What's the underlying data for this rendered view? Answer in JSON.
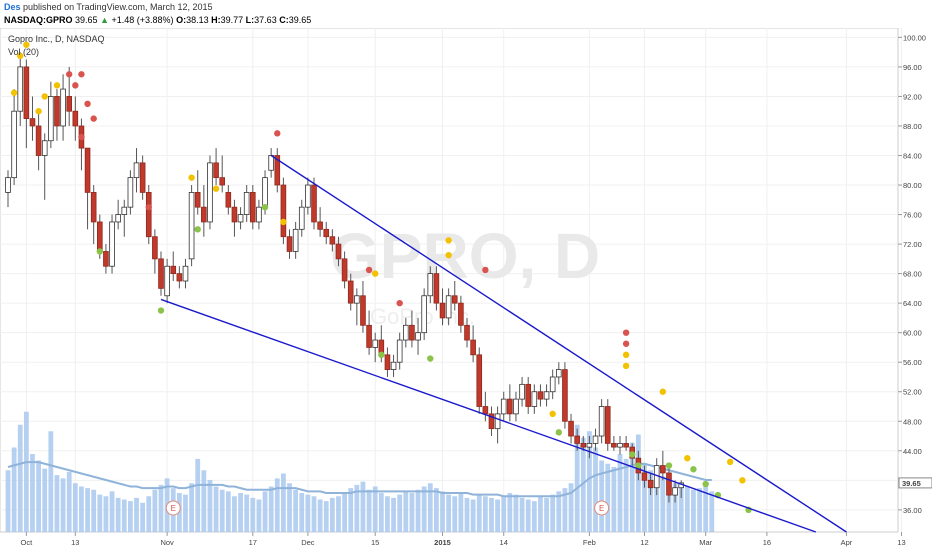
{
  "header": {
    "author": "Des",
    "published": "published on TradingView.com, March 12, 2015",
    "symbol": "NASDAQ:GPRO",
    "last": "39.65",
    "change": "+1.48 (+3.88%)",
    "open_label": "O:",
    "open": "38.13",
    "high_label": "H:",
    "high": "39.77",
    "low_label": "L:",
    "low": "37.63",
    "close_label": "C:",
    "close": "39.65"
  },
  "chart_data": {
    "type": "candlestick",
    "title": "Gopro Inc., D, NASDAQ",
    "volume_label": "Vol (20)",
    "watermark": "GPRO, D",
    "watermark_sub": "GoPro Inc.",
    "y_ticks": [
      "100.00",
      "96.00",
      "92.00",
      "88.00",
      "84.00",
      "80.00",
      "76.00",
      "72.00",
      "68.00",
      "64.00",
      "60.00",
      "56.00",
      "52.00",
      "48.00",
      "44.00",
      "40.00",
      "36.00"
    ],
    "ylim": [
      33,
      101
    ],
    "last_price_label": "39.65",
    "x_ticks": [
      {
        "label": "Oct",
        "i": 3
      },
      {
        "label": "13",
        "i": 11
      },
      {
        "label": "Nov",
        "i": 26
      },
      {
        "label": "17",
        "i": 40
      },
      {
        "label": "Dec",
        "i": 49
      },
      {
        "label": "15",
        "i": 60
      },
      {
        "label": "2015",
        "i": 71
      },
      {
        "label": "14",
        "i": 81
      },
      {
        "label": "Feb",
        "i": 95
      },
      {
        "label": "12",
        "i": 104
      },
      {
        "label": "Mar",
        "i": 114
      },
      {
        "label": "16",
        "i": 124
      },
      {
        "label": "Apr",
        "i": 137
      },
      {
        "label": "13",
        "i": 146
      }
    ],
    "earnings_markers": [
      {
        "label": "E",
        "i": 27
      },
      {
        "label": "E",
        "i": 97
      }
    ],
    "candles": [
      [
        79,
        82,
        77,
        81
      ],
      [
        81,
        93,
        80,
        90
      ],
      [
        90,
        98,
        88,
        96
      ],
      [
        96,
        97,
        85,
        89
      ],
      [
        89,
        92,
        86,
        88
      ],
      [
        88,
        90,
        82,
        84
      ],
      [
        84,
        87,
        78,
        86
      ],
      [
        86,
        94,
        85,
        92
      ],
      [
        92,
        93,
        86,
        88
      ],
      [
        88,
        95,
        86,
        93
      ],
      [
        92,
        96,
        88,
        90
      ],
      [
        90,
        92,
        86,
        88
      ],
      [
        88,
        89,
        82,
        85
      ],
      [
        85,
        85,
        74,
        79
      ],
      [
        79,
        80,
        72,
        75
      ],
      [
        75,
        76,
        70,
        71
      ],
      [
        71,
        72,
        68,
        69
      ],
      [
        69,
        76,
        68,
        75
      ],
      [
        75,
        78,
        74,
        76
      ],
      [
        76,
        78,
        73,
        77
      ],
      [
        77,
        82,
        76,
        81
      ],
      [
        81,
        85,
        79,
        83
      ],
      [
        83,
        84,
        78,
        79
      ],
      [
        79,
        80,
        72,
        73
      ],
      [
        73,
        74,
        68,
        70
      ],
      [
        70,
        71,
        65,
        66
      ],
      [
        65,
        70,
        64,
        69
      ],
      [
        69,
        71,
        67,
        68
      ],
      [
        68,
        69,
        66,
        67
      ],
      [
        67,
        70,
        66,
        69
      ],
      [
        70,
        80,
        69,
        79
      ],
      [
        79,
        82,
        76,
        77
      ],
      [
        77,
        80,
        73,
        75
      ],
      [
        75,
        84,
        74,
        83
      ],
      [
        83,
        85,
        80,
        81
      ],
      [
        81,
        84,
        79,
        80
      ],
      [
        79,
        80,
        76,
        77
      ],
      [
        77,
        78,
        73,
        75
      ],
      [
        75,
        77,
        74,
        76
      ],
      [
        76,
        80,
        75,
        79
      ],
      [
        79,
        80,
        74,
        75
      ],
      [
        75,
        78,
        74,
        77
      ],
      [
        77,
        82,
        76,
        81
      ],
      [
        82,
        85,
        81,
        84
      ],
      [
        84,
        85,
        79,
        80
      ],
      [
        80,
        81,
        72,
        73
      ],
      [
        73,
        74,
        70,
        71
      ],
      [
        71,
        75,
        70,
        74
      ],
      [
        74,
        78,
        73,
        77
      ],
      [
        77,
        81,
        76,
        80
      ],
      [
        80,
        81,
        74,
        75
      ],
      [
        75,
        77,
        73,
        74
      ],
      [
        74,
        75,
        72,
        73
      ],
      [
        73,
        74,
        71,
        72
      ],
      [
        72,
        73,
        69,
        70
      ],
      [
        70,
        71,
        66,
        67
      ],
      [
        67,
        68,
        63,
        64
      ],
      [
        64,
        66,
        61,
        65
      ],
      [
        65,
        67,
        60,
        61
      ],
      [
        61,
        63,
        57,
        58
      ],
      [
        58,
        60,
        56,
        59
      ],
      [
        59,
        61,
        56,
        57
      ],
      [
        57,
        58,
        54,
        55
      ],
      [
        55,
        57,
        54,
        56
      ],
      [
        56,
        60,
        55,
        59
      ],
      [
        59,
        62,
        58,
        61
      ],
      [
        61,
        63,
        58,
        59
      ],
      [
        59,
        62,
        57,
        60
      ],
      [
        60,
        66,
        59,
        65
      ],
      [
        65,
        69,
        64,
        68
      ],
      [
        68,
        69,
        63,
        64
      ],
      [
        64,
        66,
        61,
        62
      ],
      [
        62,
        66,
        61,
        65
      ],
      [
        65,
        67,
        63,
        64
      ],
      [
        64,
        65,
        60,
        61
      ],
      [
        61,
        62,
        58,
        59
      ],
      [
        59,
        61,
        56,
        57
      ],
      [
        57,
        58,
        49,
        50
      ],
      [
        50,
        52,
        48,
        49
      ],
      [
        49,
        50,
        46,
        47
      ],
      [
        47,
        50,
        45,
        49
      ],
      [
        49,
        52,
        48,
        51
      ],
      [
        51,
        53,
        48,
        49
      ],
      [
        49,
        52,
        48,
        51
      ],
      [
        51,
        54,
        50,
        53
      ],
      [
        53,
        54,
        49,
        50
      ],
      [
        50,
        53,
        49,
        52
      ],
      [
        52,
        53,
        50,
        51
      ],
      [
        51,
        53,
        50,
        52
      ],
      [
        52,
        55,
        51,
        54
      ],
      [
        54,
        56,
        53,
        55
      ],
      [
        55,
        56,
        47,
        48
      ],
      [
        48,
        49,
        45,
        46
      ],
      [
        46,
        47,
        44,
        45
      ],
      [
        45,
        46,
        44,
        44.5
      ],
      [
        44.5,
        46,
        43,
        45
      ],
      [
        45,
        47,
        44,
        46
      ],
      [
        46,
        51,
        45,
        50
      ],
      [
        50,
        51,
        44,
        45
      ],
      [
        45,
        46,
        44,
        44.5
      ],
      [
        44.5,
        46,
        43.5,
        45
      ],
      [
        45,
        46,
        44,
        44.5
      ],
      [
        44.5,
        45,
        42,
        43
      ],
      [
        43,
        44,
        40,
        41
      ],
      [
        41,
        42,
        39,
        40
      ],
      [
        40,
        41,
        38,
        39
      ],
      [
        39,
        43,
        38,
        42
      ],
      [
        42,
        44,
        40,
        41
      ],
      [
        41,
        42,
        37,
        38
      ],
      [
        38,
        40,
        37,
        39
      ],
      [
        39,
        40,
        37.6,
        39.65
      ]
    ],
    "volume": [
      38,
      52,
      66,
      74,
      48,
      44,
      39,
      62,
      35,
      33,
      37,
      30,
      28,
      27,
      26,
      23,
      22,
      25,
      21,
      20,
      19,
      21,
      18,
      22,
      26,
      29,
      33,
      27,
      24,
      23,
      30,
      45,
      38,
      32,
      28,
      26,
      25,
      22,
      24,
      23,
      21,
      20,
      25,
      28,
      33,
      36,
      30,
      26,
      24,
      23,
      22,
      20,
      19,
      21,
      22,
      24,
      27,
      29,
      31,
      26,
      28,
      24,
      22,
      21,
      23,
      25,
      24,
      26,
      28,
      30,
      27,
      25,
      23,
      22,
      24,
      21,
      20,
      23,
      22,
      21,
      20,
      22,
      24,
      23,
      21,
      20,
      19,
      22,
      21,
      23,
      25,
      27,
      30,
      66,
      58,
      62,
      52,
      44,
      42,
      40,
      48,
      45,
      55,
      60,
      42,
      38,
      36,
      34,
      32,
      30,
      30,
      28,
      26,
      27,
      29,
      25
    ],
    "vol_ma": [
      40,
      41,
      42,
      43,
      43,
      43,
      42,
      41,
      40,
      39,
      38,
      37,
      36,
      35,
      34,
      33,
      32,
      31,
      30,
      29,
      28,
      28,
      27,
      27,
      27,
      27,
      28,
      28,
      27,
      27,
      28,
      29,
      29,
      29,
      29,
      29,
      28,
      28,
      27,
      26,
      26,
      26,
      26,
      26,
      27,
      27,
      27,
      27,
      26,
      25,
      25,
      25,
      24,
      24,
      24,
      24,
      24,
      25,
      25,
      25,
      25,
      25,
      25,
      25,
      25,
      25,
      25,
      25,
      25,
      25,
      25,
      24,
      24,
      24,
      24,
      24,
      23,
      23,
      23,
      23,
      23,
      22,
      22,
      22,
      22,
      22,
      22,
      22,
      22,
      22,
      22,
      23,
      24,
      27,
      30,
      33,
      35,
      36,
      37,
      38,
      39,
      40,
      41,
      42,
      42,
      41,
      40,
      39,
      38,
      37,
      36,
      35,
      34,
      33,
      32,
      32
    ],
    "volume_range": [
      0,
      80
    ],
    "trendlines": [
      {
        "from": {
          "i": 43,
          "p": 84
        },
        "to": {
          "i": 137,
          "p": 33
        }
      },
      {
        "from": {
          "i": 25,
          "p": 64.5
        },
        "to": {
          "i": 132,
          "p": 33
        }
      }
    ],
    "dots": [
      {
        "i": 1,
        "p": 92.5,
        "color": "#f2c200"
      },
      {
        "i": 2,
        "p": 97.5,
        "color": "#f2c200"
      },
      {
        "i": 3,
        "p": 99,
        "color": "#f2c200"
      },
      {
        "i": 5,
        "p": 90,
        "color": "#f2c200"
      },
      {
        "i": 6,
        "p": 92,
        "color": "#f2c200"
      },
      {
        "i": 8,
        "p": 93.5,
        "color": "#f2c200"
      },
      {
        "i": 10,
        "p": 95,
        "color": "#d9534f"
      },
      {
        "i": 11,
        "p": 93.5,
        "color": "#d9534f"
      },
      {
        "i": 12,
        "p": 95,
        "color": "#d9534f"
      },
      {
        "i": 13,
        "p": 91,
        "color": "#d9534f"
      },
      {
        "i": 14,
        "p": 89,
        "color": "#d9534f"
      },
      {
        "i": 12,
        "p": 86.5,
        "color": "#d9534f"
      },
      {
        "i": 15,
        "p": 71,
        "color": "#8bc34a"
      },
      {
        "i": 23,
        "p": 77,
        "color": "#d9534f"
      },
      {
        "i": 25,
        "p": 63,
        "color": "#8bc34a"
      },
      {
        "i": 30,
        "p": 81,
        "color": "#f2c200"
      },
      {
        "i": 31,
        "p": 74,
        "color": "#8bc34a"
      },
      {
        "i": 34,
        "p": 79.5,
        "color": "#f2c200"
      },
      {
        "i": 42,
        "p": 77,
        "color": "#8bc34a"
      },
      {
        "i": 44,
        "p": 87,
        "color": "#d9534f"
      },
      {
        "i": 45,
        "p": 75,
        "color": "#f2c200"
      },
      {
        "i": 59,
        "p": 68.5,
        "color": "#d9534f"
      },
      {
        "i": 60,
        "p": 68,
        "color": "#f2c200"
      },
      {
        "i": 61,
        "p": 57,
        "color": "#8bc34a"
      },
      {
        "i": 64,
        "p": 64,
        "color": "#d9534f"
      },
      {
        "i": 69,
        "p": 56.5,
        "color": "#8bc34a"
      },
      {
        "i": 72,
        "p": 72.5,
        "color": "#f2c200"
      },
      {
        "i": 72,
        "p": 70.5,
        "color": "#f2c200"
      },
      {
        "i": 78,
        "p": 68.5,
        "color": "#d9534f"
      },
      {
        "i": 89,
        "p": 49,
        "color": "#f2c200"
      },
      {
        "i": 90,
        "p": 46.5,
        "color": "#8bc34a"
      },
      {
        "i": 101,
        "p": 60,
        "color": "#d9534f"
      },
      {
        "i": 101,
        "p": 58.5,
        "color": "#d9534f"
      },
      {
        "i": 101,
        "p": 57,
        "color": "#f2c200"
      },
      {
        "i": 101,
        "p": 55.5,
        "color": "#f2c200"
      },
      {
        "i": 102,
        "p": 43.5,
        "color": "#8bc34a"
      },
      {
        "i": 103,
        "p": 42,
        "color": "#8bc34a"
      },
      {
        "i": 107,
        "p": 52,
        "color": "#f2c200"
      },
      {
        "i": 108,
        "p": 42,
        "color": "#8bc34a"
      },
      {
        "i": 111,
        "p": 43,
        "color": "#f2c200"
      },
      {
        "i": 112,
        "p": 41.5,
        "color": "#8bc34a"
      },
      {
        "i": 114,
        "p": 39.5,
        "color": "#8bc34a"
      },
      {
        "i": 116,
        "p": 38,
        "color": "#8bc34a"
      },
      {
        "i": 118,
        "p": 42.5,
        "color": "#f2c200"
      },
      {
        "i": 120,
        "p": 40,
        "color": "#f2c200"
      },
      {
        "i": 121,
        "p": 36,
        "color": "#8bc34a"
      }
    ]
  }
}
